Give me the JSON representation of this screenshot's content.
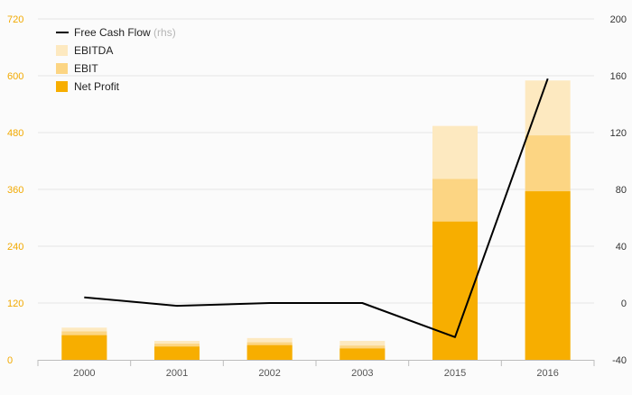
{
  "chart_data": {
    "type": "bar",
    "categories": [
      "2000",
      "2001",
      "2002",
      "2003",
      "2015",
      "2016"
    ],
    "series": [
      {
        "name": "Net Profit",
        "kind": "bar",
        "axis": "left",
        "color": "#f7ae00",
        "values": [
          52,
          28,
          31,
          24,
          292,
          356
        ]
      },
      {
        "name": "EBIT",
        "kind": "bar",
        "axis": "left",
        "color": "#fcd583",
        "values": [
          60,
          34,
          37,
          30,
          382,
          474
        ]
      },
      {
        "name": "EBITDA",
        "kind": "bar",
        "axis": "left",
        "color": "#fde9c0",
        "values": [
          68,
          40,
          46,
          40,
          494,
          590
        ]
      },
      {
        "name": "Free Cash Flow",
        "kind": "line",
        "axis": "right",
        "color": "#000000",
        "values": [
          4,
          -2,
          0,
          0,
          -24,
          158
        ]
      }
    ],
    "yaxis_left": {
      "min": 0,
      "max": 720,
      "ticks": [
        "0",
        "120",
        "240",
        "360",
        "480",
        "600",
        "720"
      ],
      "color": "#f2a900"
    },
    "yaxis_right": {
      "min": -40,
      "max": 200,
      "ticks": [
        "-40",
        "0",
        "40",
        "80",
        "120",
        "160",
        "200"
      ]
    },
    "grid": true,
    "legend": {
      "placement": "top-left",
      "items": [
        {
          "label": "Free Cash Flow",
          "suffix": "(rhs)",
          "type": "line",
          "color": "#000000"
        },
        {
          "label": "EBITDA",
          "type": "box",
          "color": "#fde9c0"
        },
        {
          "label": "EBIT",
          "type": "box",
          "color": "#fcd583"
        },
        {
          "label": "Net Profit",
          "type": "box",
          "color": "#f7ae00"
        }
      ]
    }
  }
}
